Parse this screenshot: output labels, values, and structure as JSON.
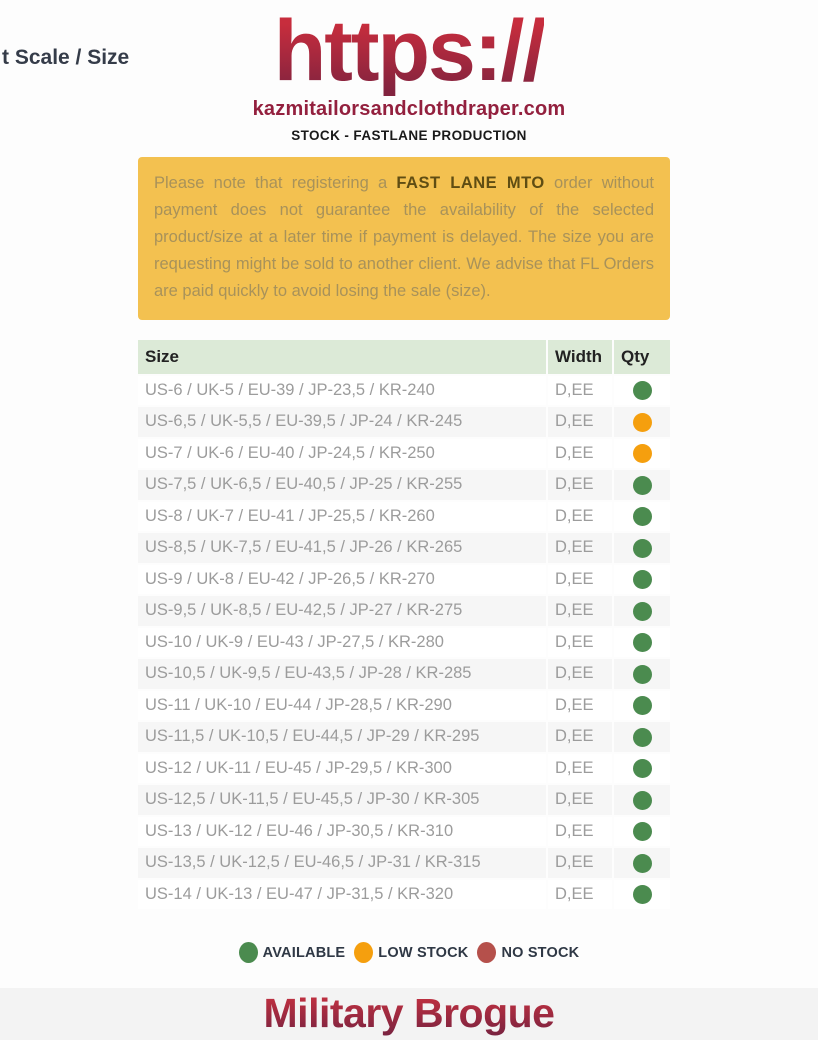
{
  "page": {
    "scale_label": "t Scale / Size",
    "logo_text": "https://",
    "domain": "kazmitailorsandclothdraper.com",
    "subtitle": "STOCK - FASTLANE PRODUCTION",
    "product_title": "Military Brogue"
  },
  "notice": {
    "pre": "Please note that registering a ",
    "bold": "FAST LANE MTO",
    "post": " order without payment does not guarantee the availability of the selected product/size at a later time if payment is delayed. The size you are requesting might be sold to another client. We advise that FL Orders are paid quickly to avoid losing the sale (size)."
  },
  "table": {
    "headers": [
      "Size",
      "Width",
      "Qty"
    ],
    "rows": [
      {
        "size": "US-6 / UK-5 / EU-39 / JP-23,5 / KR-240",
        "width": "D,EE",
        "qty": "available"
      },
      {
        "size": "US-6,5 / UK-5,5 / EU-39,5 / JP-24 / KR-245",
        "width": "D,EE",
        "qty": "low"
      },
      {
        "size": "US-7 / UK-6 / EU-40 / JP-24,5 / KR-250",
        "width": "D,EE",
        "qty": "low"
      },
      {
        "size": "US-7,5 / UK-6,5 / EU-40,5 / JP-25 / KR-255",
        "width": "D,EE",
        "qty": "available"
      },
      {
        "size": "US-8 / UK-7 / EU-41 / JP-25,5 / KR-260",
        "width": "D,EE",
        "qty": "available"
      },
      {
        "size": "US-8,5 / UK-7,5 / EU-41,5 / JP-26 / KR-265",
        "width": "D,EE",
        "qty": "available"
      },
      {
        "size": "US-9 / UK-8 / EU-42 / JP-26,5 / KR-270",
        "width": "D,EE",
        "qty": "available"
      },
      {
        "size": "US-9,5 / UK-8,5 / EU-42,5 / JP-27 / KR-275",
        "width": "D,EE",
        "qty": "available"
      },
      {
        "size": "US-10 / UK-9 / EU-43 / JP-27,5 / KR-280",
        "width": "D,EE",
        "qty": "available"
      },
      {
        "size": "US-10,5 / UK-9,5 / EU-43,5 / JP-28 / KR-285",
        "width": "D,EE",
        "qty": "available"
      },
      {
        "size": "US-11 / UK-10 / EU-44 / JP-28,5 / KR-290",
        "width": "D,EE",
        "qty": "available"
      },
      {
        "size": "US-11,5 / UK-10,5 / EU-44,5 / JP-29 / KR-295",
        "width": "D,EE",
        "qty": "available"
      },
      {
        "size": "US-12 / UK-11 / EU-45 / JP-29,5 / KR-300",
        "width": "D,EE",
        "qty": "available"
      },
      {
        "size": "US-12,5 / UK-11,5 / EU-45,5 / JP-30 / KR-305",
        "width": "D,EE",
        "qty": "available"
      },
      {
        "size": "US-13 / UK-12 / EU-46 / JP-30,5 / KR-310",
        "width": "D,EE",
        "qty": "available"
      },
      {
        "size": "US-13,5 / UK-12,5 / EU-46,5 / JP-31 / KR-315",
        "width": "D,EE",
        "qty": "available"
      },
      {
        "size": "US-14 / UK-13 / EU-47 / JP-31,5 / KR-320",
        "width": "D,EE",
        "qty": "available"
      }
    ]
  },
  "legend": [
    {
      "label": "AVAILABLE",
      "status": "available"
    },
    {
      "label": "LOW STOCK",
      "status": "low"
    },
    {
      "label": "NO STOCK",
      "status": "none"
    }
  ],
  "colors": {
    "available": "#4b8b4f",
    "low": "#f59f0e",
    "none": "#b5504b",
    "accent_red_top": "#c72d3d",
    "accent_red_bottom": "#82233f",
    "notice_bg": "#f3c150",
    "header_bg": "#dcead7"
  }
}
